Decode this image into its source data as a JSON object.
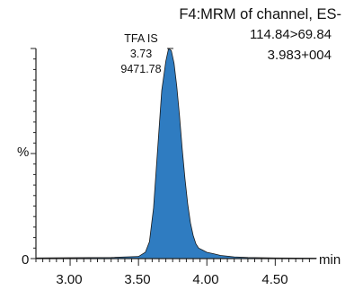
{
  "chart_data": {
    "type": "area",
    "title_lines": [
      "F4:MRM of channel, ES-",
      "114.84>69.84",
      "3.983+004"
    ],
    "xlabel": "min",
    "ylabel": "%",
    "y_zero_label": "0",
    "xlim": [
      2.75,
      4.8
    ],
    "ylim": [
      0,
      100
    ],
    "x_ticks": [
      3.0,
      3.5,
      4.0,
      4.5
    ],
    "x_tick_labels": [
      "3.00",
      "3.50",
      "4.00",
      "4.50"
    ],
    "peak_annotation": [
      "TFA IS",
      "3.73",
      "9471.78"
    ],
    "fill_color": "#2f7cc1",
    "series": [
      {
        "x": [
          2.75,
          3.0,
          3.3,
          3.5,
          3.55,
          3.58,
          3.61,
          3.64,
          3.67,
          3.7,
          3.72,
          3.74,
          3.76,
          3.78,
          3.8,
          3.82,
          3.84,
          3.86,
          3.88,
          3.9,
          3.92,
          3.94,
          3.97,
          4.0,
          4.05,
          4.1,
          4.2,
          4.3,
          4.5,
          4.8
        ],
        "y": [
          0.3,
          0.4,
          0.5,
          1,
          3,
          8,
          24,
          52,
          80,
          94,
          100,
          99,
          93,
          82,
          68,
          52,
          38,
          26,
          17,
          11,
          7,
          5,
          4,
          3,
          2.3,
          1.5,
          0.8,
          0.5,
          0.3,
          0.2
        ]
      }
    ]
  }
}
